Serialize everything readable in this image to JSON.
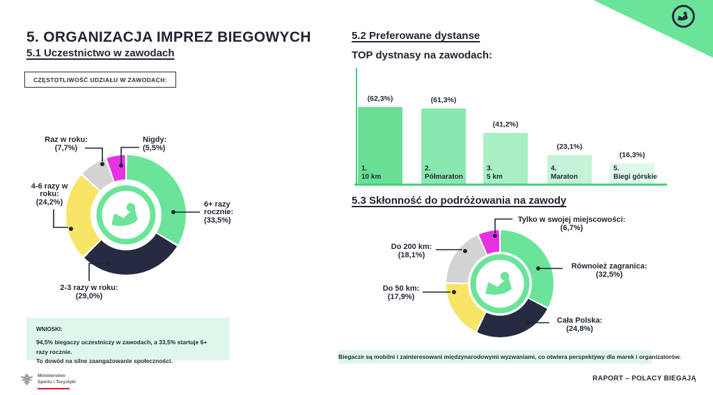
{
  "page": {
    "footer_right": "RAPORT – POLACY BIEGAJĄ",
    "ministry_line1": "Ministerstwo",
    "ministry_line2": "Sportu i Turystyki"
  },
  "sections": {
    "s5_title": "5. ORGANIZACJA IMPREZ BIEGOWYCH",
    "s51_heading": "5.1 Uczestnictwo w zawodach",
    "s51_tag": "CZĘSTOTLIWOŚĆ UDZIAŁU W ZAWODACH:",
    "s51_conclusions_title": "WNIOSKI:",
    "s51_conclusions_line1": "94,5% biegaczy uczestniczy w zawodach, a 33,5% startuje 6+ razy rocznie.",
    "s51_conclusions_line2": "To dowód na silne zaangażowanie społeczności.",
    "s52_heading": "5.2 Preferowane dystanse",
    "s52_subheading": "TOP dystnasy na zawodach:",
    "s53_heading": "5.3 Skłonność do podróżowania na zawody",
    "s53_note": "Biegacze są mobilni i zainteresowani międzynarodowymi wyzwaniami, co otwiera perspektywy dla marek i organizatorów."
  },
  "chart_data": [
    {
      "type": "pie",
      "subtype": "donut",
      "title": "Częstotliwość udziału w zawodach",
      "labels": [
        "6+ razy rocznie:",
        "2-3 razy w roku:",
        "4-6 razy w roku:",
        "Raz w roku:",
        "Nigdy:"
      ],
      "values": [
        33.5,
        29.0,
        24.2,
        7.7,
        5.5
      ],
      "value_labels": [
        "(33,5%)",
        "(29,0%)",
        "(24,2%)",
        "(7,7%)",
        "(5,5%)"
      ],
      "colors": [
        "#6be49a",
        "#262b42",
        "#f8e466",
        "#d3d3d3",
        "#e832e2"
      ],
      "start_angle_deg": 0,
      "direction": "clockwise",
      "legend_position": "callouts"
    },
    {
      "type": "bar",
      "title": "TOP dystnasy na zawodach",
      "ranks": [
        "1.",
        "2.",
        "3.",
        "4.",
        "5."
      ],
      "categories": [
        "10 km",
        "Półmaraton",
        "5 km",
        "Maraton",
        "Biegi górskie"
      ],
      "values": [
        62.3,
        61.3,
        41.2,
        23.1,
        16.3
      ],
      "value_labels": [
        "(62,3%)",
        "(61,3%)",
        "(41,2%)",
        "(23,1%)",
        "(16,3%)"
      ],
      "colors": [
        "#69df95",
        "#8ae8ae",
        "#a9efc4",
        "#c6f3d8",
        "#def8e9"
      ],
      "xlabel": "",
      "ylabel": "",
      "ylim": [
        0,
        70
      ],
      "grid": false,
      "axis_color": "#47d07d"
    },
    {
      "type": "pie",
      "subtype": "donut",
      "title": "Skłonność do podróżowania na zawody",
      "labels": [
        "Równoież zagranica:",
        "Cała Polska:",
        "Do 50 km:",
        "Do 200 km:",
        "Tylko w swojej miejscowości:"
      ],
      "values": [
        32.5,
        24.8,
        17.9,
        18.1,
        6.7
      ],
      "value_labels": [
        "(32,5%)",
        "(24,8%)",
        "(17,9%)",
        "(18,1%)",
        "(6,7%)"
      ],
      "colors": [
        "#6be49a",
        "#262b42",
        "#f8e466",
        "#d3d3d3",
        "#e832e2"
      ],
      "start_angle_deg": 0,
      "direction": "clockwise",
      "legend_position": "callouts"
    }
  ],
  "colors": {
    "accent_green": "#6be49a",
    "navy": "#262b42",
    "yellow": "#f8e466",
    "gray": "#d3d3d3",
    "magenta": "#e832e2",
    "light_green_bg": "#dff6ea",
    "axis_green": "#47d07d",
    "flag_red": "#d8213a"
  }
}
